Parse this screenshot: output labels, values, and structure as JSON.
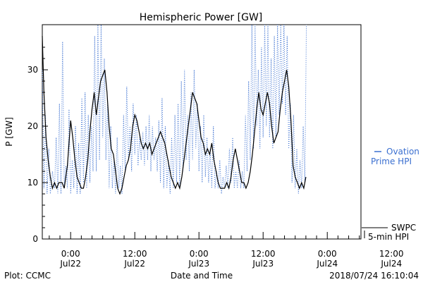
{
  "chart_data": {
    "type": "line",
    "title": "Hemispheric Power [GW]",
    "ylabel": "P [GW]",
    "xlabel": "Date and Time",
    "ylim": [
      0,
      38
    ],
    "xlim_hours": [
      -5.3,
      54.3
    ],
    "y_ticks": [
      0,
      10,
      20,
      30
    ],
    "x_ticks": [
      {
        "label": "0:00",
        "sub": "Jul22",
        "t": 0
      },
      {
        "label": "12:00",
        "sub": "Jul22",
        "t": 12
      },
      {
        "label": "0:00",
        "sub": "Jul23",
        "t": 24
      },
      {
        "label": "12:00",
        "sub": "Jul23",
        "t": 36
      },
      {
        "label": "0:00",
        "sub": "Jul24",
        "t": 48
      },
      {
        "label": "12:00",
        "sub": "Jul24",
        "t": 60
      }
    ],
    "legend": [
      {
        "label": "Ovation",
        "label2": "Prime HPI",
        "style": "dotted",
        "color": "#3a6fd0"
      },
      {
        "label": "SWPC",
        "label2": "5-min HPI",
        "style": "solid",
        "color": "#000000"
      }
    ],
    "footer": {
      "left": "Plot: CCMC",
      "right": "2018/07/24 16:10:04"
    },
    "series": [
      {
        "name": "SWPC 5-min HPI",
        "style": "solid",
        "color": "#000000",
        "points": [
          [
            -5.3,
            36
          ],
          [
            -5.0,
            26
          ],
          [
            -4.6,
            18
          ],
          [
            -4.2,
            14
          ],
          [
            -3.8,
            11
          ],
          [
            -3.4,
            9
          ],
          [
            -3.0,
            10
          ],
          [
            -2.6,
            9
          ],
          [
            -2.2,
            10
          ],
          [
            -1.6,
            10
          ],
          [
            -1.2,
            9
          ],
          [
            -0.6,
            13
          ],
          [
            -0.3,
            17
          ],
          [
            0.0,
            21
          ],
          [
            0.4,
            18
          ],
          [
            0.8,
            14
          ],
          [
            1.2,
            11
          ],
          [
            1.6,
            10
          ],
          [
            2.0,
            9
          ],
          [
            2.4,
            9
          ],
          [
            2.8,
            11
          ],
          [
            3.2,
            14
          ],
          [
            3.6,
            19
          ],
          [
            4.0,
            23
          ],
          [
            4.4,
            26
          ],
          [
            4.8,
            22
          ],
          [
            5.2,
            25
          ],
          [
            5.6,
            28
          ],
          [
            6.0,
            29
          ],
          [
            6.4,
            30
          ],
          [
            6.8,
            26
          ],
          [
            7.2,
            20
          ],
          [
            7.6,
            16
          ],
          [
            8.0,
            15
          ],
          [
            8.4,
            12
          ],
          [
            8.8,
            9
          ],
          [
            9.2,
            8
          ],
          [
            9.6,
            9
          ],
          [
            10.0,
            11
          ],
          [
            10.4,
            13
          ],
          [
            10.8,
            14
          ],
          [
            11.2,
            16
          ],
          [
            11.6,
            20
          ],
          [
            12.0,
            22
          ],
          [
            12.4,
            21
          ],
          [
            12.8,
            19
          ],
          [
            13.2,
            17
          ],
          [
            13.6,
            16
          ],
          [
            14.0,
            17
          ],
          [
            14.4,
            16
          ],
          [
            14.8,
            17
          ],
          [
            15.2,
            15
          ],
          [
            15.6,
            16
          ],
          [
            16.0,
            17
          ],
          [
            16.4,
            18
          ],
          [
            16.8,
            19
          ],
          [
            17.2,
            18
          ],
          [
            17.6,
            17
          ],
          [
            18.0,
            15
          ],
          [
            18.4,
            13
          ],
          [
            18.8,
            11
          ],
          [
            19.2,
            10
          ],
          [
            19.6,
            9
          ],
          [
            20.0,
            10
          ],
          [
            20.4,
            9
          ],
          [
            20.8,
            11
          ],
          [
            21.2,
            14
          ],
          [
            21.6,
            17
          ],
          [
            22.0,
            20
          ],
          [
            22.4,
            23
          ],
          [
            22.8,
            26
          ],
          [
            23.2,
            25
          ],
          [
            23.6,
            24
          ],
          [
            24.0,
            21
          ],
          [
            24.4,
            18
          ],
          [
            24.8,
            17
          ],
          [
            25.2,
            15
          ],
          [
            25.6,
            16
          ],
          [
            26.0,
            15
          ],
          [
            26.4,
            17
          ],
          [
            26.8,
            14
          ],
          [
            27.2,
            12
          ],
          [
            27.6,
            10
          ],
          [
            28.0,
            9
          ],
          [
            28.4,
            9
          ],
          [
            28.8,
            9
          ],
          [
            29.2,
            10
          ],
          [
            29.6,
            9
          ],
          [
            30.0,
            11
          ],
          [
            30.4,
            14
          ],
          [
            30.8,
            16
          ],
          [
            31.2,
            14
          ],
          [
            31.6,
            12
          ],
          [
            32.0,
            10
          ],
          [
            32.4,
            10
          ],
          [
            32.8,
            9
          ],
          [
            33.2,
            10
          ],
          [
            33.6,
            12
          ],
          [
            34.0,
            15
          ],
          [
            34.4,
            19
          ],
          [
            34.8,
            23
          ],
          [
            35.2,
            26
          ],
          [
            35.6,
            23
          ],
          [
            36.0,
            22
          ],
          [
            36.4,
            24
          ],
          [
            36.8,
            26
          ],
          [
            37.2,
            24
          ],
          [
            37.6,
            20
          ],
          [
            38.0,
            17
          ],
          [
            38.4,
            18
          ],
          [
            38.8,
            19
          ],
          [
            39.2,
            23
          ],
          [
            39.6,
            26
          ],
          [
            40.0,
            28
          ],
          [
            40.4,
            30
          ],
          [
            40.8,
            27
          ],
          [
            41.2,
            21
          ],
          [
            41.6,
            13
          ],
          [
            42.0,
            11
          ],
          [
            42.4,
            10
          ],
          [
            42.8,
            9
          ],
          [
            43.2,
            10
          ],
          [
            43.6,
            9
          ],
          [
            44.0,
            11
          ]
        ]
      },
      {
        "name": "Ovation Prime HPI",
        "style": "dotted",
        "color": "#3a6fd0",
        "points": [
          [
            -5.3,
            30
          ],
          [
            -5.0,
            9
          ],
          [
            -4.7,
            22
          ],
          [
            -4.4,
            8
          ],
          [
            -4.1,
            16
          ],
          [
            -3.8,
            8
          ],
          [
            -3.4,
            12
          ],
          [
            -3.0,
            9
          ],
          [
            -2.7,
            18
          ],
          [
            -2.4,
            8
          ],
          [
            -2.1,
            24
          ],
          [
            -1.8,
            8
          ],
          [
            -1.5,
            35
          ],
          [
            -1.2,
            9
          ],
          [
            -0.9,
            13
          ],
          [
            -0.6,
            9
          ],
          [
            -0.3,
            23
          ],
          [
            0.0,
            8
          ],
          [
            0.3,
            14
          ],
          [
            0.6,
            9
          ],
          [
            0.9,
            20
          ],
          [
            1.2,
            8
          ],
          [
            1.5,
            17
          ],
          [
            1.8,
            8
          ],
          [
            2.1,
            25
          ],
          [
            2.4,
            10
          ],
          [
            2.7,
            26
          ],
          [
            3.0,
            9
          ],
          [
            3.3,
            22
          ],
          [
            3.6,
            10
          ],
          [
            3.9,
            20
          ],
          [
            4.2,
            12
          ],
          [
            4.5,
            36
          ],
          [
            4.8,
            12
          ],
          [
            5.1,
            38
          ],
          [
            5.4,
            14
          ],
          [
            5.7,
            38
          ],
          [
            6.0,
            18
          ],
          [
            6.3,
            32
          ],
          [
            6.6,
            14
          ],
          [
            6.9,
            24
          ],
          [
            7.2,
            9
          ],
          [
            7.5,
            20
          ],
          [
            7.8,
            9
          ],
          [
            8.1,
            14
          ],
          [
            8.4,
            8
          ],
          [
            8.7,
            18
          ],
          [
            9.0,
            9
          ],
          [
            9.3,
            13
          ],
          [
            9.6,
            8
          ],
          [
            9.9,
            22
          ],
          [
            10.2,
            12
          ],
          [
            10.5,
            27
          ],
          [
            10.8,
            14
          ],
          [
            11.1,
            20
          ],
          [
            11.4,
            12
          ],
          [
            11.7,
            24
          ],
          [
            12.0,
            15
          ],
          [
            12.3,
            22
          ],
          [
            12.6,
            13
          ],
          [
            12.9,
            18
          ],
          [
            13.2,
            14
          ],
          [
            13.5,
            19
          ],
          [
            13.8,
            13
          ],
          [
            14.1,
            20
          ],
          [
            14.4,
            14
          ],
          [
            14.7,
            22
          ],
          [
            15.0,
            12
          ],
          [
            15.3,
            20
          ],
          [
            15.6,
            14
          ],
          [
            15.9,
            18
          ],
          [
            16.2,
            12
          ],
          [
            16.5,
            21
          ],
          [
            16.8,
            10
          ],
          [
            17.1,
            25
          ],
          [
            17.4,
            9
          ],
          [
            17.7,
            20
          ],
          [
            18.0,
            9
          ],
          [
            18.3,
            14
          ],
          [
            18.6,
            8
          ],
          [
            18.9,
            18
          ],
          [
            19.2,
            9
          ],
          [
            19.5,
            22
          ],
          [
            19.8,
            10
          ],
          [
            20.1,
            24
          ],
          [
            20.4,
            9
          ],
          [
            20.7,
            28
          ],
          [
            21.0,
            12
          ],
          [
            21.3,
            30
          ],
          [
            21.6,
            14
          ],
          [
            21.9,
            22
          ],
          [
            22.2,
            12
          ],
          [
            22.5,
            26
          ],
          [
            22.8,
            14
          ],
          [
            23.1,
            30
          ],
          [
            23.4,
            16
          ],
          [
            23.7,
            24
          ],
          [
            24.0,
            12
          ],
          [
            24.3,
            20
          ],
          [
            24.6,
            10
          ],
          [
            24.9,
            22
          ],
          [
            25.2,
            11
          ],
          [
            25.5,
            18
          ],
          [
            25.8,
            10
          ],
          [
            26.1,
            16
          ],
          [
            26.4,
            9
          ],
          [
            26.7,
            20
          ],
          [
            27.0,
            9
          ],
          [
            27.3,
            12
          ],
          [
            27.6,
            9
          ],
          [
            27.9,
            14
          ],
          [
            28.2,
            8
          ],
          [
            28.5,
            11
          ],
          [
            28.8,
            9
          ],
          [
            29.1,
            13
          ],
          [
            29.4,
            9
          ],
          [
            29.7,
            16
          ],
          [
            30.0,
            10
          ],
          [
            30.3,
            18
          ],
          [
            30.6,
            9
          ],
          [
            30.9,
            12
          ],
          [
            31.2,
            9
          ],
          [
            31.5,
            14
          ],
          [
            31.8,
            9
          ],
          [
            32.1,
            12
          ],
          [
            32.4,
            9
          ],
          [
            32.7,
            22
          ],
          [
            33.0,
            12
          ],
          [
            33.3,
            28
          ],
          [
            33.6,
            14
          ],
          [
            33.9,
            38
          ],
          [
            34.2,
            16
          ],
          [
            34.5,
            38
          ],
          [
            34.8,
            20
          ],
          [
            35.1,
            30
          ],
          [
            35.4,
            16
          ],
          [
            35.7,
            34
          ],
          [
            36.0,
            18
          ],
          [
            36.3,
            38
          ],
          [
            36.6,
            20
          ],
          [
            36.9,
            38
          ],
          [
            37.2,
            18
          ],
          [
            37.5,
            32
          ],
          [
            37.8,
            16
          ],
          [
            38.1,
            36
          ],
          [
            38.4,
            18
          ],
          [
            38.7,
            38
          ],
          [
            39.0,
            22
          ],
          [
            39.3,
            38
          ],
          [
            39.6,
            24
          ],
          [
            39.9,
            38
          ],
          [
            40.2,
            22
          ],
          [
            40.5,
            36
          ],
          [
            40.8,
            16
          ],
          [
            41.1,
            24
          ],
          [
            41.4,
            10
          ],
          [
            41.7,
            22
          ],
          [
            42.0,
            9
          ],
          [
            42.3,
            16
          ],
          [
            42.6,
            8
          ],
          [
            42.9,
            14
          ],
          [
            43.2,
            9
          ],
          [
            43.5,
            20
          ],
          [
            43.8,
            10
          ],
          [
            44.1,
            38
          ]
        ]
      }
    ]
  }
}
